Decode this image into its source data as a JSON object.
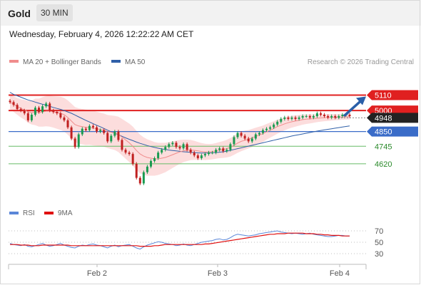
{
  "header": {
    "title": "Gold",
    "timeframe": "30 MIN"
  },
  "date_line": "Wednesday, February 4, 2026 12:22:22 AM CET",
  "colors": {
    "ma20": "#f08c8c",
    "ma50": "#3060a8",
    "band_fill": "#fbd5d5",
    "up": "#1a9a50",
    "down": "#c02020",
    "resistance": "#e02020",
    "pivot": "#3a6cc8",
    "support": "#66bb66",
    "rsi": "#5a86d8",
    "rsi_ma": "#e01010",
    "arrow": "#2a5fa8"
  },
  "chart_data": [
    {
      "type": "candlestick",
      "legend": [
        {
          "name": "MA 20 + Bollinger Bands",
          "color": "#f08c8c"
        },
        {
          "name": "MA 50",
          "color": "#3060a8"
        }
      ],
      "source": "Research © 2026 Trading Central",
      "ylim": [
        4340,
        5280
      ],
      "levels": [
        {
          "label": "5110",
          "value": 5110,
          "kind": "resistance"
        },
        {
          "label": "5000",
          "value": 5000,
          "kind": "resistance"
        },
        {
          "label": "4948",
          "value": 4948,
          "kind": "last_price"
        },
        {
          "label": "4850",
          "value": 4850,
          "kind": "pivot"
        },
        {
          "label": "4745",
          "value": 4745,
          "kind": "support"
        },
        {
          "label": "4620",
          "value": 4620,
          "kind": "support"
        }
      ],
      "x_ticks": [
        "Feb 2",
        "Feb 3",
        "Feb 4"
      ],
      "arrow": {
        "from": 4960,
        "to": 5110,
        "direction": "up"
      },
      "close": [
        5060,
        5040,
        5010,
        5000,
        4980,
        4930,
        4970,
        5020,
        4990,
        5030,
        5050,
        5000,
        4990,
        4980,
        4950,
        4930,
        4880,
        4800,
        4740,
        4830,
        4870,
        4860,
        4890,
        4880,
        4850,
        4860,
        4840,
        4780,
        4820,
        4850,
        4790,
        4720,
        4700,
        4690,
        4620,
        4520,
        4480,
        4560,
        4600,
        4640,
        4660,
        4700,
        4720,
        4740,
        4760,
        4770,
        4740,
        4730,
        4760,
        4720,
        4700,
        4680,
        4660,
        4680,
        4690,
        4700,
        4700,
        4720,
        4730,
        4710,
        4720,
        4760,
        4810,
        4840,
        4820,
        4800,
        4780,
        4800,
        4830,
        4840,
        4860,
        4870,
        4880,
        4900,
        4920,
        4940,
        4950,
        4940,
        4950,
        4940,
        4950,
        4960,
        4960,
        4950,
        4960,
        4980,
        4970,
        4960,
        4950,
        4960,
        4950,
        4960,
        4970,
        4970,
        4960
      ],
      "ma20": [
        5060,
        5045,
        5030,
        5015,
        5005,
        4990,
        4985,
        4990,
        4985,
        4990,
        4995,
        4995,
        4990,
        4985,
        4980,
        4970,
        4950,
        4925,
        4900,
        4890,
        4885,
        4880,
        4880,
        4875,
        4870,
        4865,
        4860,
        4850,
        4845,
        4840,
        4830,
        4810,
        4790,
        4770,
        4745,
        4715,
        4690,
        4675,
        4665,
        4660,
        4655,
        4655,
        4660,
        4665,
        4675,
        4685,
        4695,
        4705,
        4712,
        4716,
        4718,
        4716,
        4712,
        4708,
        4705,
        4705,
        4707,
        4712,
        4718,
        4722,
        4728,
        4738,
        4752,
        4768,
        4780,
        4788,
        4795,
        4805,
        4815,
        4825,
        4835,
        4848,
        4860,
        4872,
        4885,
        4895,
        4905,
        4913,
        4920,
        4925,
        4930,
        4935,
        4938,
        4940,
        4942,
        4945,
        4947,
        4949,
        4950,
        4951,
        4952,
        4953,
        4954,
        4955,
        4956
      ],
      "ma50": [
        5130,
        5115,
        5105,
        5095,
        5085,
        5075,
        5068,
        5060,
        5052,
        5045,
        5038,
        5030,
        5022,
        5015,
        5008,
        5000,
        4990,
        4980,
        4968,
        4955,
        4942,
        4930,
        4918,
        4906,
        4895,
        4884,
        4872,
        4860,
        4848,
        4838,
        4828,
        4816,
        4805,
        4795,
        4785,
        4775,
        4766,
        4758,
        4750,
        4743,
        4737,
        4731,
        4726,
        4722,
        4718,
        4715,
        4712,
        4709,
        4706,
        4704,
        4702,
        4700,
        4698,
        4697,
        4697,
        4697,
        4698,
        4700,
        4703,
        4706,
        4710,
        4716,
        4722,
        4728,
        4734,
        4740,
        4746,
        4752,
        4758,
        4764,
        4770,
        4776,
        4782,
        4788,
        4794,
        4800,
        4806,
        4812,
        4818,
        4823,
        4828,
        4833,
        4838,
        4843,
        4848,
        4853,
        4858,
        4862,
        4866,
        4870,
        4874,
        4878,
        4882,
        4886,
        4890
      ],
      "band_width": [
        50,
        55,
        60,
        65,
        70,
        78,
        85,
        95,
        100,
        105,
        108,
        110,
        112,
        115,
        118,
        120,
        122,
        124,
        125,
        126,
        126,
        126,
        125,
        124,
        122,
        120,
        118,
        118,
        120,
        122,
        126,
        130,
        134,
        137,
        140,
        140,
        138,
        134,
        130,
        125,
        120,
        115,
        110,
        105,
        100,
        95,
        90,
        85,
        80,
        76,
        72,
        68,
        64,
        60,
        58,
        56,
        55,
        56,
        58,
        60,
        63,
        66,
        68,
        70,
        70,
        68,
        66,
        64,
        62,
        60,
        58,
        56,
        54,
        52,
        50,
        48,
        46,
        44,
        42,
        40,
        38,
        36,
        34,
        32,
        30,
        28,
        26,
        25,
        24,
        23,
        22,
        21,
        20,
        20,
        20
      ]
    },
    {
      "type": "line",
      "legend": [
        {
          "name": "RSI",
          "color": "#5a86d8"
        },
        {
          "name": "9MA",
          "color": "#e01010"
        }
      ],
      "ylim": [
        15,
        85
      ],
      "y_ticks": [
        "70",
        "50",
        "30"
      ],
      "rsi": [
        48,
        46,
        45,
        44,
        46,
        43,
        42,
        44,
        46,
        48,
        45,
        43,
        44,
        46,
        48,
        45,
        43,
        41,
        40,
        43,
        45,
        44,
        46,
        47,
        45,
        44,
        42,
        40,
        43,
        45,
        42,
        44,
        45,
        46,
        43,
        40,
        38,
        42,
        45,
        47,
        49,
        51,
        50,
        48,
        47,
        46,
        44,
        45,
        47,
        45,
        44,
        46,
        48,
        50,
        51,
        52,
        53,
        55,
        56,
        54,
        55,
        58,
        62,
        64,
        63,
        62,
        61,
        62,
        63,
        65,
        66,
        67,
        68,
        69,
        70,
        68,
        67,
        66,
        65,
        66,
        65,
        64,
        65,
        66,
        64,
        63,
        62,
        61,
        60,
        60,
        61,
        62,
        62,
        61,
        61
      ],
      "rsi_ma": [
        46,
        46,
        46,
        45,
        45,
        45,
        44,
        44,
        44,
        45,
        45,
        45,
        45,
        45,
        45,
        45,
        45,
        44,
        44,
        44,
        44,
        44,
        44,
        44,
        44,
        44,
        44,
        44,
        44,
        44,
        44,
        44,
        44,
        44,
        44,
        44,
        43,
        43,
        43,
        43,
        44,
        44,
        45,
        46,
        46,
        46,
        46,
        46,
        46,
        46,
        46,
        46,
        46,
        46,
        47,
        47,
        48,
        49,
        50,
        51,
        52,
        53,
        54,
        55,
        56,
        57,
        58,
        59,
        60,
        61,
        62,
        63,
        64,
        64,
        65,
        65,
        65,
        66,
        66,
        66,
        66,
        66,
        65,
        65,
        65,
        64,
        64,
        63,
        63,
        62,
        62,
        62,
        61,
        61,
        61
      ]
    }
  ]
}
